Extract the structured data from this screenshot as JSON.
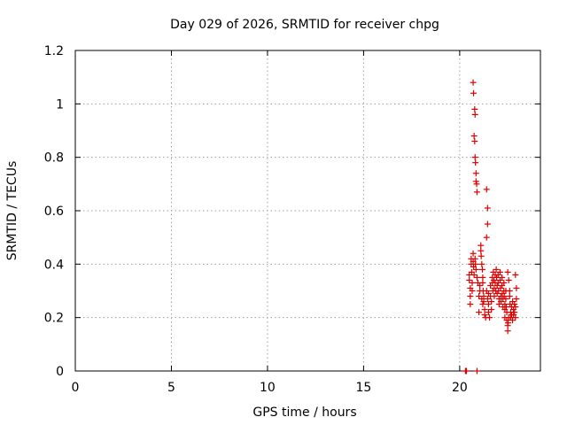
{
  "chart_data": {
    "type": "scatter",
    "title": "Day 029 of 2026, SRMTID for receiver chpg",
    "xlabel": "GPS time / hours",
    "ylabel": "SRMTID / TECUs",
    "xlim": [
      0,
      24.2
    ],
    "ylim": [
      0,
      1.2
    ],
    "xticks": [
      0,
      5,
      10,
      15,
      20
    ],
    "xtick_labels": [
      "0",
      "5",
      "10",
      "15",
      "20"
    ],
    "yticks": [
      0,
      0.2,
      0.4,
      0.6,
      0.8,
      1.0,
      1.2
    ],
    "ytick_labels": [
      "0",
      "0.2",
      "0.4",
      "0.6",
      "0.8",
      "1",
      "1.2"
    ],
    "grid": true,
    "marker": "+",
    "color": "#e00000",
    "series": [
      {
        "name": "SRMTID",
        "points": [
          [
            20.3,
            0.0
          ],
          [
            20.35,
            0.0
          ],
          [
            20.9,
            0.0
          ],
          [
            20.5,
            0.36
          ],
          [
            20.5,
            0.34
          ],
          [
            20.55,
            0.31
          ],
          [
            20.55,
            0.28
          ],
          [
            20.55,
            0.25
          ],
          [
            20.6,
            0.4
          ],
          [
            20.6,
            0.42
          ],
          [
            20.62,
            0.37
          ],
          [
            20.65,
            0.33
          ],
          [
            20.65,
            0.3
          ],
          [
            20.7,
            0.44
          ],
          [
            20.7,
            0.41
          ],
          [
            20.72,
            0.39
          ],
          [
            20.75,
            0.36
          ],
          [
            20.7,
            1.08
          ],
          [
            20.72,
            1.04
          ],
          [
            20.78,
            0.98
          ],
          [
            20.8,
            0.96
          ],
          [
            20.75,
            0.88
          ],
          [
            20.78,
            0.86
          ],
          [
            20.8,
            0.8
          ],
          [
            20.82,
            0.78
          ],
          [
            20.85,
            0.74
          ],
          [
            20.85,
            0.71
          ],
          [
            20.88,
            0.7
          ],
          [
            20.9,
            0.67
          ],
          [
            20.8,
            0.42
          ],
          [
            20.82,
            0.4
          ],
          [
            20.85,
            0.38
          ],
          [
            20.9,
            0.35
          ],
          [
            20.95,
            0.33
          ],
          [
            21.0,
            0.22
          ],
          [
            21.0,
            0.28
          ],
          [
            21.05,
            0.3
          ],
          [
            21.05,
            0.32
          ],
          [
            21.1,
            0.45
          ],
          [
            21.1,
            0.47
          ],
          [
            21.12,
            0.43
          ],
          [
            21.15,
            0.4
          ],
          [
            21.18,
            0.38
          ],
          [
            21.2,
            0.35
          ],
          [
            21.2,
            0.33
          ],
          [
            21.22,
            0.3
          ],
          [
            21.25,
            0.28
          ],
          [
            21.25,
            0.26
          ],
          [
            21.3,
            0.23
          ],
          [
            21.3,
            0.21
          ],
          [
            21.35,
            0.2
          ],
          [
            21.15,
            0.27
          ],
          [
            21.2,
            0.25
          ],
          [
            21.4,
            0.5
          ],
          [
            21.45,
            0.55
          ],
          [
            21.45,
            0.61
          ],
          [
            21.4,
            0.68
          ],
          [
            21.4,
            0.3
          ],
          [
            21.45,
            0.27
          ],
          [
            21.5,
            0.25
          ],
          [
            21.5,
            0.22
          ],
          [
            21.55,
            0.2
          ],
          [
            21.5,
            0.29
          ],
          [
            21.6,
            0.32
          ],
          [
            21.6,
            0.28
          ],
          [
            21.65,
            0.26
          ],
          [
            21.65,
            0.23
          ],
          [
            21.7,
            0.35
          ],
          [
            21.7,
            0.33
          ],
          [
            21.72,
            0.3
          ],
          [
            21.75,
            0.37
          ],
          [
            21.78,
            0.34
          ],
          [
            21.8,
            0.31
          ],
          [
            21.8,
            0.28
          ],
          [
            21.85,
            0.36
          ],
          [
            21.85,
            0.33
          ],
          [
            21.88,
            0.3
          ],
          [
            21.9,
            0.38
          ],
          [
            21.92,
            0.35
          ],
          [
            21.95,
            0.32
          ],
          [
            21.95,
            0.29
          ],
          [
            22.0,
            0.36
          ],
          [
            22.0,
            0.33
          ],
          [
            22.02,
            0.3
          ],
          [
            22.05,
            0.27
          ],
          [
            22.05,
            0.25
          ],
          [
            22.1,
            0.37
          ],
          [
            22.1,
            0.34
          ],
          [
            22.12,
            0.31
          ],
          [
            22.15,
            0.28
          ],
          [
            22.15,
            0.26
          ],
          [
            22.2,
            0.35
          ],
          [
            22.2,
            0.32
          ],
          [
            22.22,
            0.29
          ],
          [
            22.25,
            0.27
          ],
          [
            22.25,
            0.24
          ],
          [
            22.3,
            0.33
          ],
          [
            22.3,
            0.3
          ],
          [
            22.32,
            0.28
          ],
          [
            22.35,
            0.25
          ],
          [
            22.35,
            0.23
          ],
          [
            22.35,
            0.2
          ],
          [
            22.4,
            0.3
          ],
          [
            22.4,
            0.27
          ],
          [
            22.42,
            0.24
          ],
          [
            22.45,
            0.22
          ],
          [
            22.45,
            0.19
          ],
          [
            22.5,
            0.17
          ],
          [
            22.5,
            0.15
          ],
          [
            22.52,
            0.18
          ],
          [
            22.55,
            0.2
          ],
          [
            22.5,
            0.37
          ],
          [
            22.55,
            0.34
          ],
          [
            22.6,
            0.3
          ],
          [
            22.6,
            0.28
          ],
          [
            22.62,
            0.25
          ],
          [
            22.65,
            0.22
          ],
          [
            22.65,
            0.2
          ],
          [
            22.7,
            0.24
          ],
          [
            22.7,
            0.21
          ],
          [
            22.75,
            0.19
          ],
          [
            22.75,
            0.26
          ],
          [
            22.8,
            0.23
          ],
          [
            22.8,
            0.21
          ],
          [
            22.85,
            0.25
          ],
          [
            22.85,
            0.22
          ],
          [
            22.9,
            0.2
          ],
          [
            22.9,
            0.24
          ],
          [
            22.9,
            0.36
          ],
          [
            22.95,
            0.31
          ],
          [
            22.95,
            0.27
          ]
        ]
      }
    ]
  }
}
